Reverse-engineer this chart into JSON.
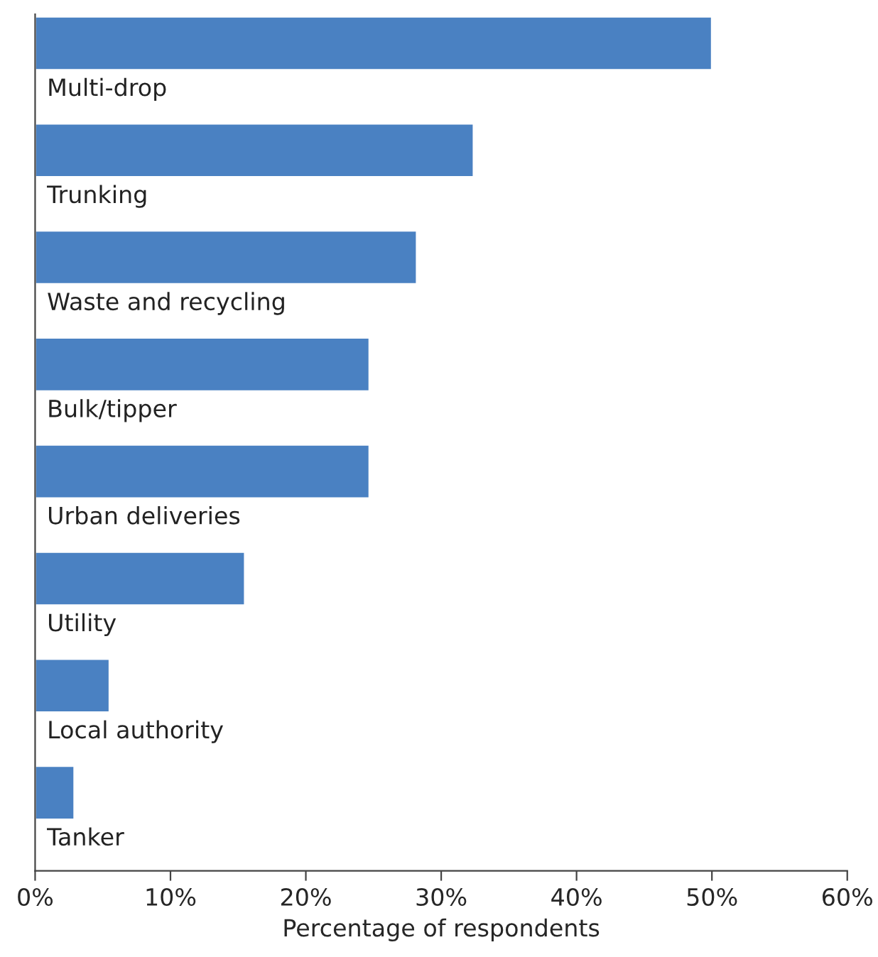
{
  "chart_data": {
    "type": "bar",
    "orientation": "horizontal",
    "xlabel": "Percentage of respondents",
    "categories": [
      "Multi-drop",
      "Trunking",
      "Waste and recycling",
      "Bulk/tipper",
      "Urban deliveries",
      "Utility",
      "Local authority",
      "Tanker"
    ],
    "values": [
      50,
      32.4,
      28.2,
      24.7,
      24.7,
      15.5,
      5.5,
      2.9
    ],
    "color": "#4a81c2",
    "xlim": [
      0,
      60
    ],
    "xticks": [
      {
        "value": 0,
        "label": "0%"
      },
      {
        "value": 10,
        "label": "10%"
      },
      {
        "value": 20,
        "label": "20%"
      },
      {
        "value": 30,
        "label": "30%"
      },
      {
        "value": 40,
        "label": "40%"
      },
      {
        "value": 50,
        "label": "50%"
      },
      {
        "value": 60,
        "label": "60%"
      }
    ],
    "grid": false,
    "legend": false
  }
}
